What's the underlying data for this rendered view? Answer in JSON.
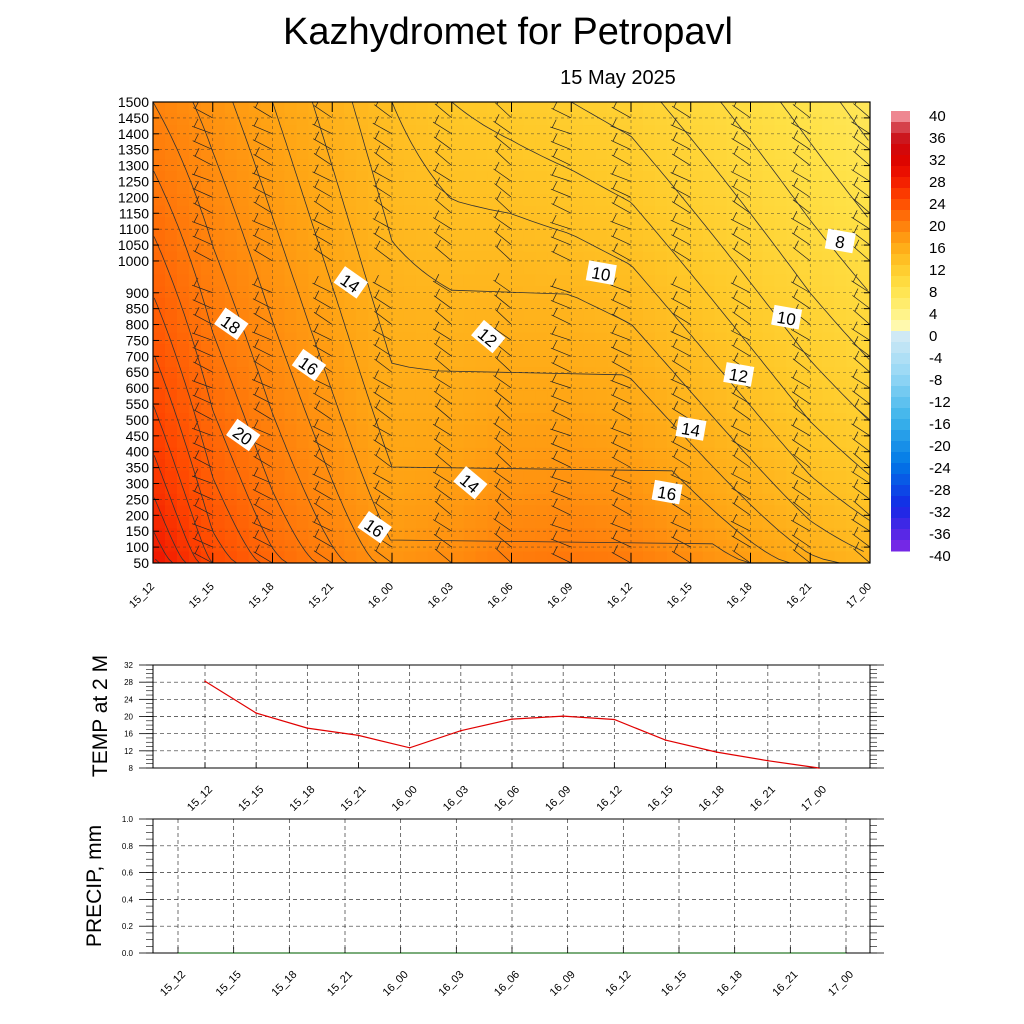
{
  "title": "Kazhydromet  for Petropavl",
  "subtitle": "15 May 2025",
  "colors": {
    "grid": "#333333",
    "contour": "#333333",
    "temp_line": "#e00000",
    "precip_line": "#2a7a2a"
  },
  "time_labels": [
    "15_12",
    "15_15",
    "15_18",
    "15_21",
    "16_00",
    "16_03",
    "16_06",
    "16_09",
    "16_12",
    "16_15",
    "16_18",
    "16_21",
    "17_00"
  ],
  "temp_time_labels": [
    "15_12",
    "15_15",
    "15_18",
    "15_21",
    "16_00",
    "16_03",
    "16_06",
    "16_09",
    "16_12",
    "16_15",
    "16_18",
    "16_21",
    "17_00"
  ],
  "chart_data": [
    {
      "type": "heatmap",
      "title": "Kazhydromet  for Petropavl",
      "subtitle": "15 May 2025",
      "x": [
        "15_12",
        "15_15",
        "15_18",
        "15_21",
        "16_00",
        "16_03",
        "16_06",
        "16_09",
        "16_12",
        "16_15",
        "16_18",
        "16_21",
        "17_00"
      ],
      "y_ticks": [
        50,
        100,
        150,
        200,
        250,
        300,
        350,
        400,
        450,
        500,
        550,
        600,
        650,
        700,
        750,
        800,
        850,
        900,
        1000,
        1050,
        1100,
        1150,
        1200,
        1250,
        1300,
        1350,
        1400,
        1450,
        1500
      ],
      "ylim": [
        50,
        1500
      ],
      "colorbar_labels": [
        40,
        36,
        32,
        28,
        24,
        20,
        16,
        12,
        8,
        4,
        0,
        -4,
        -8,
        -12,
        -16,
        -20,
        -24,
        -28,
        -32,
        -36,
        -40
      ],
      "contour_labels": [
        {
          "text": "18",
          "t": 1.3,
          "h": 800
        },
        {
          "text": "14",
          "t": 3.3,
          "h": 930
        },
        {
          "text": "16",
          "t": 2.6,
          "h": 670
        },
        {
          "text": "20",
          "t": 1.5,
          "h": 450
        },
        {
          "text": "12",
          "t": 5.6,
          "h": 760
        },
        {
          "text": "10",
          "t": 7.5,
          "h": 960
        },
        {
          "text": "8",
          "t": 11.5,
          "h": 1060
        },
        {
          "text": "10",
          "t": 10.6,
          "h": 820
        },
        {
          "text": "12",
          "t": 9.8,
          "h": 640
        },
        {
          "text": "14",
          "t": 9.0,
          "h": 470
        },
        {
          "text": "16",
          "t": 8.6,
          "h": 270
        },
        {
          "text": "14",
          "t": 5.3,
          "h": 300
        },
        {
          "text": "16",
          "t": 3.7,
          "h": 160
        }
      ],
      "grid": true
    },
    {
      "type": "line",
      "ylabel": "TEMP at 2 M",
      "categories": [
        "15_12",
        "15_15",
        "15_18",
        "15_21",
        "16_00",
        "16_03",
        "16_06",
        "16_09",
        "16_12",
        "16_15",
        "16_18",
        "16_21",
        "17_00"
      ],
      "values": [
        28.2,
        20.8,
        17.3,
        15.6,
        12.7,
        16.7,
        19.4,
        20.1,
        19.3,
        14.5,
        11.7,
        9.7,
        8.0
      ],
      "yticks": [
        8,
        12,
        16,
        20,
        24,
        28,
        32
      ],
      "ylim": [
        8,
        32
      ],
      "grid": true
    },
    {
      "type": "line",
      "ylabel": "PRECIP, mm",
      "categories": [
        "15_12",
        "15_15",
        "15_18",
        "15_21",
        "16_00",
        "16_03",
        "16_06",
        "16_09",
        "16_12",
        "16_15",
        "16_18",
        "16_21",
        "17_00"
      ],
      "values": [
        0,
        0,
        0,
        0,
        0,
        0,
        0,
        0,
        0,
        0,
        0,
        0,
        0
      ],
      "yticks": [
        "0.0",
        "0.2",
        "0.4",
        "0.6",
        "0.8",
        "1.0"
      ],
      "ylim": [
        0,
        1
      ],
      "grid": true
    }
  ]
}
